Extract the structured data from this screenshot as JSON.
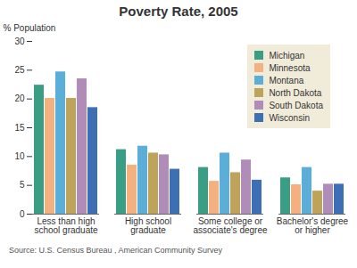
{
  "chart_data": {
    "type": "bar",
    "title": "Poverty Rate, 2005",
    "ylabel": "% Population",
    "caption": "Source: U.S. Census Bureau , American Community Survey",
    "categories": [
      "Less than high\nschool graduate",
      "High school\ngraduate",
      "Some college or\nassociate's degree",
      "Bachelor's degree\nor higher"
    ],
    "series": [
      {
        "name": "Michigan",
        "color": "#3a9e85",
        "values": [
          22.4,
          11.2,
          8.1,
          6.3
        ]
      },
      {
        "name": "Minnesota",
        "color": "#f5b07f",
        "values": [
          20.1,
          8.5,
          5.7,
          5.1
        ]
      },
      {
        "name": "Montana",
        "color": "#5aaed8",
        "values": [
          24.7,
          11.8,
          10.6,
          8.1
        ]
      },
      {
        "name": "North Dakota",
        "color": "#c0a35a",
        "values": [
          20.1,
          10.6,
          7.2,
          4.0
        ]
      },
      {
        "name": "South Dakota",
        "color": "#b08db8",
        "values": [
          23.5,
          10.3,
          9.4,
          5.2
        ]
      },
      {
        "name": "Wisconsin",
        "color": "#3c6fb3",
        "values": [
          18.5,
          7.8,
          5.9,
          5.2
        ]
      }
    ],
    "ylim": [
      0,
      30
    ],
    "yticks": [
      0,
      5,
      10,
      15,
      20,
      25,
      30
    ],
    "grid": false,
    "legend": "top-right"
  }
}
